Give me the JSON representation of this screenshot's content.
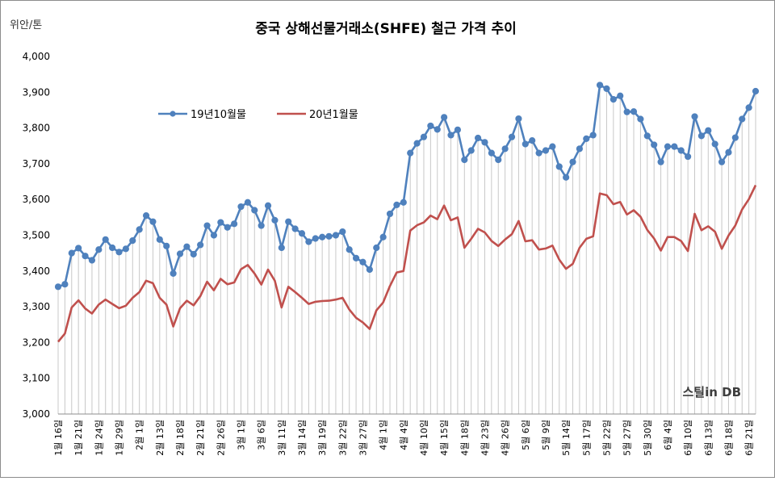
{
  "chart_data": {
    "type": "line",
    "title": "중국 상해선물거래소(SHFE) 철근 가격 추이",
    "ylabel": "위안/톤",
    "xlabel": "",
    "ylim": [
      3000,
      4000
    ],
    "yticks": [
      "3,000",
      "3,100",
      "3,200",
      "3,300",
      "3,400",
      "3,500",
      "3,600",
      "3,700",
      "3,800",
      "3,900",
      "4,000"
    ],
    "grid": "vertical drop lines at every point",
    "legend_position": "top-left",
    "watermark": "스틸in DB",
    "x_tick_labels": [
      "1월 16일",
      "1월 21일",
      "1월 24일",
      "1월 29일",
      "2월 1일",
      "2월 13일",
      "2월 18일",
      "2월 21일",
      "2월 26일",
      "3월 1일",
      "3월 6일",
      "3월 11일",
      "3월 14일",
      "3월 19일",
      "3월 22일",
      "3월 27일",
      "4월 1일",
      "4월 4일",
      "4월 10일",
      "4월 15일",
      "4월 18일",
      "4월 23일",
      "4월 26일",
      "5월 6일",
      "5월 9일",
      "5월 14일",
      "5월 17일",
      "5월 22일",
      "5월 27일",
      "5월 30일",
      "6월 4일",
      "6월 10일",
      "6월 13일",
      "6월 18일",
      "6월 21일"
    ],
    "series": [
      {
        "name": "19년10월물",
        "color": "#4f81bd",
        "marker": "circle",
        "values": [
          3356,
          3363,
          3450,
          3464,
          3442,
          3430,
          3460,
          3488,
          3465,
          3453,
          3462,
          3485,
          3516,
          3555,
          3538,
          3488,
          3470,
          3393,
          3448,
          3468,
          3447,
          3473,
          3527,
          3500,
          3536,
          3522,
          3532,
          3580,
          3592,
          3570,
          3527,
          3583,
          3542,
          3465,
          3538,
          3518,
          3505,
          3482,
          3491,
          3495,
          3497,
          3500,
          3510,
          3460,
          3436,
          3425,
          3404,
          3465,
          3495,
          3560,
          3585,
          3592,
          3730,
          3757,
          3775,
          3806,
          3796,
          3830,
          3780,
          3795,
          3711,
          3737,
          3772,
          3760,
          3730,
          3711,
          3742,
          3775,
          3826,
          3755,
          3765,
          3730,
          3737,
          3748,
          3692,
          3662,
          3705,
          3742,
          3770,
          3780,
          3920,
          3910,
          3880,
          3890,
          3845,
          3846,
          3825,
          3778,
          3753,
          3705,
          3748,
          3748,
          3737,
          3720,
          3832,
          3778,
          3793,
          3755,
          3705,
          3732,
          3773,
          3825,
          3857,
          3903
        ]
      },
      {
        "name": "20년1월물",
        "color": "#c0504d",
        "marker": "none",
        "values": [
          3202,
          3225,
          3298,
          3318,
          3295,
          3281,
          3306,
          3320,
          3308,
          3296,
          3303,
          3325,
          3341,
          3373,
          3366,
          3325,
          3306,
          3245,
          3296,
          3317,
          3304,
          3330,
          3370,
          3346,
          3378,
          3363,
          3368,
          3405,
          3417,
          3393,
          3362,
          3404,
          3373,
          3298,
          3356,
          3341,
          3325,
          3308,
          3314,
          3316,
          3317,
          3320,
          3325,
          3292,
          3269,
          3256,
          3238,
          3290,
          3312,
          3358,
          3396,
          3400,
          3513,
          3528,
          3536,
          3555,
          3545,
          3583,
          3542,
          3550,
          3465,
          3490,
          3518,
          3508,
          3484,
          3470,
          3488,
          3503,
          3540,
          3483,
          3486,
          3460,
          3463,
          3471,
          3432,
          3406,
          3420,
          3465,
          3490,
          3497,
          3617,
          3612,
          3587,
          3593,
          3558,
          3570,
          3552,
          3515,
          3491,
          3457,
          3495,
          3495,
          3484,
          3456,
          3560,
          3514,
          3525,
          3510,
          3462,
          3499,
          3527,
          3572,
          3601,
          3640
        ]
      }
    ]
  }
}
